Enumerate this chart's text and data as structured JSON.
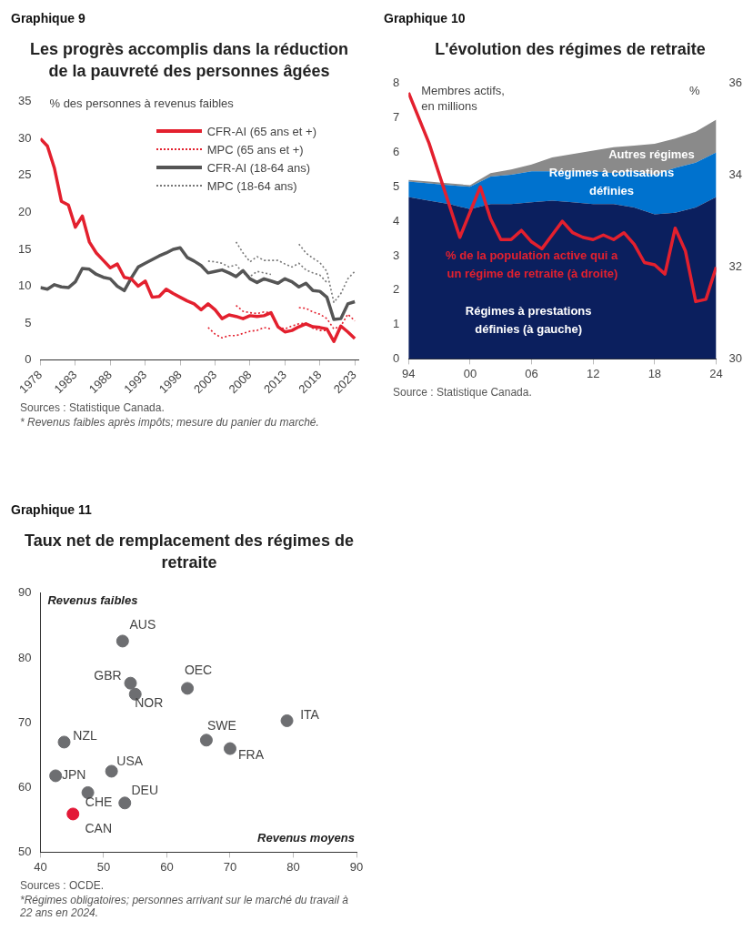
{
  "chart_data": [
    {
      "type": "line",
      "title": "Les progrès accomplis dans la réduction de la pauvreté des personnes âgées",
      "ylabel": "% des personnes à revenus faibles",
      "annotations": [
        "Graphique 9",
        "Sources : Statistique Canada.",
        "* Revenus faibles après impôts; mesure du panier du marché."
      ],
      "x": [
        1978,
        1979,
        1980,
        1981,
        1982,
        1983,
        1984,
        1985,
        1986,
        1987,
        1988,
        1989,
        1990,
        1991,
        1992,
        1993,
        1994,
        1995,
        1996,
        1997,
        1998,
        1999,
        2000,
        2001,
        2002,
        2003,
        2004,
        2005,
        2006,
        2007,
        2008,
        2009,
        2010,
        2011,
        2012,
        2013,
        2014,
        2015,
        2016,
        2017,
        2018,
        2019,
        2020,
        2021,
        2022,
        2023
      ],
      "series": [
        {
          "name": "CFR-AI (65 ans et +)",
          "color": "#e3202e",
          "line_style": "solid",
          "values": [
            30,
            29,
            26,
            21.5,
            21,
            18,
            19.5,
            16,
            14.5,
            13.5,
            12.5,
            13,
            11.2,
            11,
            10,
            10.7,
            8.5,
            8.6,
            9.6,
            9,
            8.5,
            8,
            7.6,
            6.8,
            7.6,
            6.8,
            5.6,
            6.1,
            5.9,
            5.6,
            6,
            5.9,
            6,
            6.4,
            4.5,
            3.8,
            4,
            4.5,
            4.9,
            4.5,
            4.4,
            4.2,
            2.5,
            4.6,
            3.8,
            2.9
          ]
        },
        {
          "name": "MPC (65 ans et +)",
          "color": "#e3202e",
          "line_style": "dotted",
          "x": [
            2002,
            2003,
            2004,
            2005,
            2006,
            2007,
            2008,
            2009,
            2010,
            2011
          ],
          "values": [
            4.4,
            3.5,
            3,
            3.3,
            3.3,
            3.6,
            3.9,
            4,
            4.4,
            4.2
          ]
        },
        {
          "name": "CFR-AI (18-64 ans)",
          "color": "#555555",
          "line_style": "solid",
          "values": [
            9.8,
            9.6,
            10.2,
            9.9,
            9.8,
            10.6,
            12.4,
            12.3,
            11.6,
            11.2,
            11,
            10,
            9.4,
            11.1,
            12.6,
            13.1,
            13.6,
            14.1,
            14.5,
            15,
            15.2,
            13.9,
            13.4,
            12.8,
            11.8,
            12,
            12.2,
            11.8,
            11.3,
            12.1,
            11,
            10.5,
            11,
            10.7,
            10.4,
            11,
            10.6,
            9.9,
            10.4,
            9.4,
            9.3,
            8.5,
            5.5,
            5.6,
            7.6,
            7.9
          ]
        },
        {
          "name": "MPC (18-64 ans)",
          "color": "#777777",
          "line_style": "dotted",
          "x": [
            2002,
            2003,
            2004,
            2005,
            2006,
            2007,
            2008,
            2009,
            2010,
            2011
          ],
          "values": [
            13.4,
            13.3,
            13.1,
            12.6,
            12.9,
            11.8,
            11.3,
            12,
            11.8,
            11.6
          ]
        },
        {
          "color": "#e3202e",
          "line_style": "dotted",
          "x": [
            2006,
            2007,
            2008,
            2009,
            2010,
            2011,
            2012,
            2013,
            2014,
            2015,
            2016,
            2017,
            2018,
            2019
          ],
          "values": [
            7.4,
            6.6,
            6.4,
            6.3,
            6.5,
            6.4,
            4.5,
            4.2,
            4.6,
            4.9,
            5,
            4.3,
            4,
            4
          ]
        },
        {
          "color": "#e3202e",
          "line_style": "dotted",
          "x": [
            2015,
            2016,
            2017,
            2018,
            2019,
            2020,
            2021,
            2022,
            2023
          ],
          "values": [
            7.1,
            7,
            6.5,
            6.2,
            5.6,
            4.2,
            4.6,
            6.2,
            5.3
          ]
        },
        {
          "color": "#777777",
          "line_style": "dotted",
          "x": [
            2006,
            2007,
            2008,
            2009,
            2010,
            2011,
            2012,
            2013,
            2014,
            2015,
            2016,
            2017,
            2018,
            2019
          ],
          "values": [
            16,
            14.5,
            13.3,
            14,
            13.5,
            13.5,
            13.5,
            13,
            12.6,
            13.1,
            12.2,
            11.8,
            11.5,
            10.5
          ]
        },
        {
          "color": "#777777",
          "line_style": "dotted",
          "x": [
            2015,
            2016,
            2017,
            2018,
            2019,
            2020,
            2021,
            2022,
            2023
          ],
          "values": [
            15.7,
            14.5,
            13.8,
            13.2,
            12,
            7.8,
            9,
            11,
            12
          ]
        }
      ],
      "xlim": [
        1978,
        2023.5
      ],
      "xticks": [
        1978,
        1983,
        1988,
        1993,
        1998,
        2003,
        2008,
        2013,
        2018,
        2023
      ],
      "ylim": [
        0,
        35
      ],
      "yticks": [
        0,
        5,
        10,
        15,
        20,
        25,
        30,
        35
      ],
      "marker": "none",
      "legend": "top right"
    },
    {
      "type": "area",
      "stacked": true,
      "title": "L'évolution des régimes de retraite",
      "ylabel": "Membres actifs, en millions",
      "y2label": "%",
      "annotations": [
        "Graphique 10",
        "Source : Statistique Canada."
      ],
      "x": [
        1994,
        1996,
        1998,
        2000,
        2002,
        2004,
        2006,
        2008,
        2010,
        2012,
        2014,
        2016,
        2018,
        2020,
        2022,
        2024
      ],
      "series": [
        {
          "name": "Régimes à prestations définies (à gauche)",
          "color": "#0b1f5e",
          "values": [
            4.7,
            4.6,
            4.5,
            4.35,
            4.5,
            4.5,
            4.55,
            4.6,
            4.55,
            4.5,
            4.5,
            4.4,
            4.2,
            4.25,
            4.4,
            4.7
          ]
        },
        {
          "name": "Régimes à cotisations définies",
          "color": "#0072ce",
          "values": [
            0.45,
            0.5,
            0.55,
            0.65,
            0.8,
            0.85,
            0.9,
            0.85,
            0.9,
            0.95,
            0.9,
            1.05,
            1.15,
            1.3,
            1.3,
            1.3
          ]
        },
        {
          "name": "Autres régimes",
          "color": "#8a8a8a",
          "values": [
            0.05,
            0.05,
            0.05,
            0.05,
            0.1,
            0.15,
            0.2,
            0.4,
            0.5,
            0.6,
            0.75,
            0.75,
            0.9,
            0.85,
            0.9,
            0.95
          ]
        },
        {
          "name": "% de la population active qui a un régime de retraite (à droite)",
          "type": "line",
          "axis": "y2",
          "color": "#e3202e",
          "x": [
            1994,
            1996,
            1999,
            2000,
            2001,
            2002,
            2003,
            2004,
            2005,
            2006,
            2007,
            2009,
            2010,
            2011,
            2012,
            2013,
            2014,
            2015,
            2016,
            2017,
            2018,
            2019,
            2020,
            2021,
            2022,
            2023,
            2024
          ],
          "values": [
            35.8,
            34.7,
            32.65,
            33.2,
            33.75,
            33.05,
            32.6,
            32.6,
            32.8,
            32.55,
            32.4,
            33,
            32.75,
            32.65,
            32.6,
            32.7,
            32.6,
            32.75,
            32.5,
            32.1,
            32.05,
            31.85,
            32.85,
            32.35,
            31.25,
            31.3,
            32
          ]
        }
      ],
      "xlim": [
        1994,
        2024
      ],
      "xticks": [
        {
          "value": 1994,
          "label": "94"
        },
        {
          "value": 2000,
          "label": "00"
        },
        {
          "value": 2006,
          "label": "06"
        },
        {
          "value": 2012,
          "label": "12"
        },
        {
          "value": 2018,
          "label": "18"
        },
        {
          "value": 2024,
          "label": "24"
        }
      ],
      "ylim": [
        0,
        8
      ],
      "yticks": [
        0,
        1,
        2,
        3,
        4,
        5,
        6,
        7,
        8
      ],
      "y2lim": [
        30,
        36
      ],
      "y2ticks": [
        30,
        32,
        34,
        36
      ],
      "marker": "none"
    },
    {
      "type": "scatter",
      "title": "Taux net de remplacement des régimes de retraite",
      "xlabel": "Revenus moyens",
      "ylabel": "Revenus faibles",
      "annotations": [
        "Graphique 11",
        "Sources : OCDE.",
        "*Régimes obligatoires; personnes arrivant sur le marché du travail à 22 ans en 2024.",
        {
          "text": "AUS",
          "x": 53,
          "y": 82.6
        },
        {
          "text": "GBR",
          "x": 54.25,
          "y": 76.1
        },
        {
          "text": "NOR",
          "x": 55,
          "y": 74.4
        },
        {
          "text": "OEC",
          "x": 63.25,
          "y": 75.3
        },
        {
          "text": "ITA",
          "x": 79,
          "y": 70.3
        },
        {
          "text": "SWE",
          "x": 66.25,
          "y": 67.3
        },
        {
          "text": "FRA",
          "x": 70,
          "y": 66
        },
        {
          "text": "NZL",
          "x": 43.75,
          "y": 67
        },
        {
          "text": "USA",
          "x": 51.25,
          "y": 62.5
        },
        {
          "text": "JPN",
          "x": 42.4,
          "y": 61.8
        },
        {
          "text": "CHE",
          "x": 47.5,
          "y": 59.2
        },
        {
          "text": "DEU",
          "x": 53.35,
          "y": 57.6
        },
        {
          "text": "CAN",
          "x": 45.15,
          "y": 55.9
        }
      ],
      "x": [
        53,
        54.25,
        55,
        63.25,
        79,
        66.25,
        70,
        43.75,
        51.25,
        42.4,
        47.5,
        53.35,
        45.15
      ],
      "values": [
        82.6,
        76.1,
        74.4,
        75.3,
        70.3,
        67.3,
        66,
        67,
        62.5,
        61.8,
        59.2,
        57.6,
        55.9
      ],
      "colors": [
        "#6d6e71",
        "#6d6e71",
        "#6d6e71",
        "#6d6e71",
        "#6d6e71",
        "#6d6e71",
        "#6d6e71",
        "#6d6e71",
        "#6d6e71",
        "#6d6e71",
        "#6d6e71",
        "#6d6e71",
        "#e31837"
      ],
      "xlim": [
        40,
        90
      ],
      "xticks": [
        40,
        50,
        60,
        70,
        80,
        90
      ],
      "ylim": [
        50,
        90
      ],
      "yticks": [
        50,
        60,
        70,
        80,
        90
      ],
      "marker": "circle"
    }
  ]
}
